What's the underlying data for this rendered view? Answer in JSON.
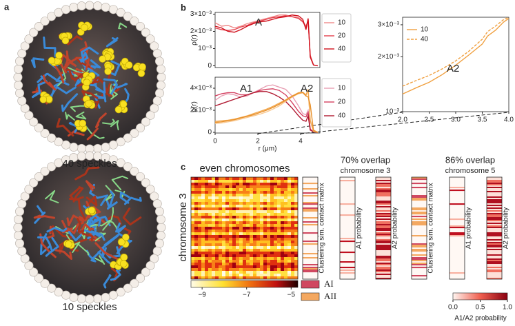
{
  "panel_labels": [
    "a",
    "b",
    "c"
  ],
  "panel_a": {
    "captions": [
      "40 speckles",
      "10 speckles"
    ]
  },
  "chart_data": [
    {
      "type": "line",
      "ylabel": "ρ(r)",
      "x": [
        0,
        0.3,
        0.6,
        0.9,
        1.2,
        1.5,
        1.8,
        2.1,
        2.4,
        2.7,
        3.0,
        3.3,
        3.6,
        3.9,
        4.1,
        4.25,
        4.35,
        4.45,
        4.6,
        4.8
      ],
      "xlim": [
        0,
        4.9
      ],
      "ylim": [
        -0.0001,
        0.0031
      ],
      "yticks": [
        0,
        {
          "value": 0.001,
          "label": "10⁻³"
        },
        {
          "value": 0.002,
          "label": "2×10⁻³"
        },
        {
          "value": 0.003,
          "label": "3×10⁻³"
        }
      ],
      "annotations": [
        {
          "text": "A",
          "color": "#e02030"
        }
      ],
      "series": [
        {
          "name": "10",
          "color": "#f08a8a",
          "values": [
            0.0025,
            0.0023,
            0.00235,
            0.0022,
            0.0023,
            0.00245,
            0.00255,
            0.00265,
            0.00275,
            0.00285,
            0.00295,
            0.00295,
            0.00285,
            0.0028,
            0.0026,
            0.0023,
            0.0026,
            0.0005,
            5e-05,
            0
          ]
        },
        {
          "name": "20",
          "color": "#e4404c",
          "values": [
            0.0022,
            0.0021,
            0.00205,
            0.0021,
            0.00225,
            0.00235,
            0.0025,
            0.0026,
            0.0027,
            0.0028,
            0.00285,
            0.0029,
            0.00285,
            0.00275,
            0.00255,
            0.00225,
            0.00265,
            0.0006,
            5e-05,
            0
          ]
        },
        {
          "name": "40",
          "color": "#d0101c",
          "values": [
            0.0023,
            0.0022,
            0.002,
            0.00195,
            0.0021,
            0.0023,
            0.00245,
            0.00255,
            0.0026,
            0.0027,
            0.0028,
            0.00285,
            0.00295,
            0.0029,
            0.0027,
            0.0021,
            0.00275,
            0.0005,
            5e-05,
            0
          ]
        }
      ]
    },
    {
      "type": "line",
      "ylabel": "ρ(r)",
      "xlabel": "r (μm)",
      "x": [
        0,
        0.3,
        0.6,
        0.9,
        1.2,
        1.5,
        1.8,
        2.1,
        2.4,
        2.7,
        3.0,
        3.3,
        3.6,
        3.9,
        4.1,
        4.25,
        4.35,
        4.45,
        4.6,
        4.8
      ],
      "xlim": [
        0,
        4.9
      ],
      "ylim": [
        -6e-05,
        0.005
      ],
      "xticks": [
        0,
        2,
        4
      ],
      "yticks": [
        0,
        {
          "value": 0.002,
          "label": "2×10⁻³"
        },
        {
          "value": 0.004,
          "label": "4×10⁻³"
        }
      ],
      "annotations": [
        {
          "text": "A1",
          "color": "#d02030"
        },
        {
          "text": "A2",
          "color": "#f0a040"
        }
      ],
      "series": [
        {
          "name": "10",
          "color": "#e8a0b4",
          "values": [
            0.0029,
            0.0033,
            0.0035,
            0.0034,
            0.0032,
            0.0033,
            0.0036,
            0.0039,
            0.0042,
            0.0043,
            0.0041,
            0.0039,
            0.0033,
            0.0024,
            0.0017,
            0.0016,
            0.002,
            0.0003,
            5e-05,
            0
          ]
        },
        {
          "name": "20",
          "color": "#d44060",
          "values": [
            0.0033,
            0.0035,
            0.0036,
            0.0036,
            0.0034,
            0.0034,
            0.0036,
            0.0038,
            0.0039,
            0.00395,
            0.0038,
            0.0034,
            0.0027,
            0.0019,
            0.0015,
            0.0014,
            0.0018,
            0.0003,
            5e-05,
            0
          ]
        },
        {
          "name": "40",
          "color": "#b01830",
          "values": [
            0.0024,
            0.0026,
            0.0028,
            0.003,
            0.0032,
            0.0034,
            0.0036,
            0.0037,
            0.0037,
            0.0035,
            0.0032,
            0.0028,
            0.0022,
            0.0015,
            0.0011,
            0.001,
            0.0015,
            0.0002,
            5e-05,
            0
          ]
        },
        {
          "color": "#f8c890",
          "values": [
            0.0008,
            0.00085,
            0.00095,
            0.00105,
            0.0012,
            0.00135,
            0.0015,
            0.00165,
            0.00185,
            0.0021,
            0.0024,
            0.0028,
            0.0032,
            0.0035,
            0.0036,
            0.0033,
            0.0038,
            0.001,
            0.0001,
            0
          ]
        },
        {
          "color": "#f2a850",
          "values": [
            0.001,
            0.00105,
            0.0011,
            0.0012,
            0.00135,
            0.0015,
            0.0017,
            0.0019,
            0.0021,
            0.00235,
            0.00265,
            0.00295,
            0.0033,
            0.0036,
            0.00365,
            0.0034,
            0.0039,
            0.0011,
            0.0001,
            0
          ]
        },
        {
          "color": "#e8902a",
          "values": [
            0.0009,
            0.00095,
            0.00105,
            0.00115,
            0.0013,
            0.00145,
            0.0016,
            0.0018,
            0.002,
            0.00225,
            0.00255,
            0.0029,
            0.00325,
            0.00355,
            0.0036,
            0.0033,
            0.0032,
            0.0025,
            0.0002,
            0
          ]
        }
      ]
    },
    {
      "type": "line",
      "ylog": true,
      "x": [
        2,
        2.25,
        2.5,
        2.75,
        3,
        3.25,
        3.5,
        3.6,
        3.75,
        3.9,
        4.0
      ],
      "xlim": [
        2,
        4
      ],
      "ylim": [
        0.001,
        0.0033
      ],
      "xticks": [
        {
          "value": 2,
          "label": "2.0"
        },
        2.5,
        {
          "value": 3,
          "label": "3.0"
        },
        3.5,
        {
          "value": 4,
          "label": "4.0"
        }
      ],
      "yticks": [
        {
          "value": 0.001,
          "label": "10⁻³"
        },
        {
          "value": 0.002,
          "label": "2×10⁻³"
        },
        {
          "value": 0.003,
          "label": "3×10⁻³"
        }
      ],
      "annotations": [
        {
          "text": "A2",
          "color": "#f0a040"
        }
      ],
      "series": [
        {
          "name": "10",
          "color": "#f0a040",
          "values": [
            0.00125,
            0.00135,
            0.00145,
            0.0016,
            0.0018,
            0.00205,
            0.00235,
            0.0026,
            0.0028,
            0.0031,
            0.00325
          ]
        },
        {
          "name": "40",
          "color": "#f0a040",
          "dash": true,
          "values": [
            0.00138,
            0.00148,
            0.00158,
            0.00172,
            0.0019,
            0.00215,
            0.0025,
            0.00275,
            0.00295,
            0.0032,
            0.0033
          ]
        }
      ]
    }
  ],
  "panel_c": {
    "heatmap_title": "even chromosomes",
    "row_label": "chromosome 3",
    "comparisons": [
      {
        "overlap": "70% overlap",
        "chromosome": "chromosome 3",
        "columns": [
          "Clustering sim. contact matrix",
          "A1 probability",
          "A2 probability"
        ]
      },
      {
        "overlap": "86% overlap",
        "chromosome": "chromosome 5",
        "columns": [
          "Clustering sim. contact matrix",
          "A1 probability",
          "A2 probability"
        ]
      }
    ],
    "contact_colorbar": {
      "lim": [
        -9.5,
        -4.7
      ],
      "ticks": [
        {
          "value": -9,
          "label": "−9"
        },
        {
          "value": -7,
          "label": "−7"
        },
        {
          "value": -5,
          "label": "−5"
        }
      ]
    },
    "compartment_legend": [
      "AI",
      "AII"
    ],
    "probability_colorbar": {
      "lim": [
        0,
        1
      ],
      "ticks": [
        {
          "value": 0,
          "label": "0.0"
        },
        0.5,
        {
          "value": 1,
          "label": "1.0"
        }
      ],
      "label": "A1/A2 probability"
    }
  }
}
